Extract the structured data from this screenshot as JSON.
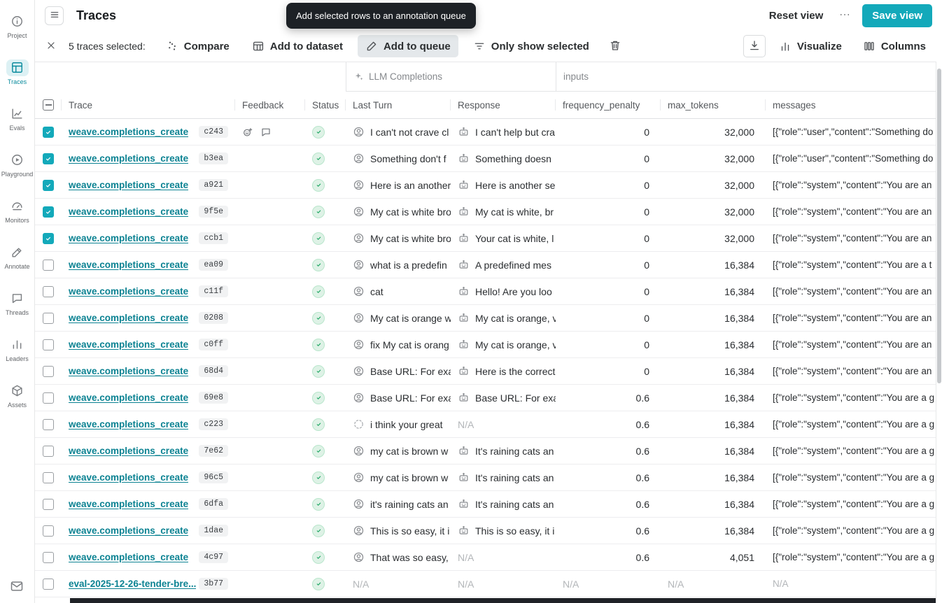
{
  "colors": {
    "accent": "#13a9ba",
    "link": "#0b8292",
    "success_green": "#17a35d",
    "tooltip_bg": "#1d2126",
    "active_button_bg": "#e4e8eb"
  },
  "sidebar": {
    "items": [
      {
        "label": "Project",
        "icon": "info",
        "active": false
      },
      {
        "label": "Traces",
        "icon": "traces",
        "active": true
      },
      {
        "label": "Evals",
        "icon": "evals",
        "active": false
      },
      {
        "label": "Playground",
        "icon": "playground",
        "active": false
      },
      {
        "label": "Monitors",
        "icon": "monitors",
        "active": false
      },
      {
        "label": "Annotate",
        "icon": "annotate",
        "active": false
      },
      {
        "label": "Threads",
        "icon": "threads",
        "active": false
      },
      {
        "label": "Leaders",
        "icon": "leaders",
        "active": false
      },
      {
        "label": "Assets",
        "icon": "assets",
        "active": false
      }
    ],
    "bottom_icon": "mail"
  },
  "header": {
    "title": "Traces",
    "reset_view_label": "Reset view",
    "save_view_label": "Save view"
  },
  "tooltip": {
    "text": "Add selected rows to an annotation queue"
  },
  "toolbar": {
    "selected_text": "5 traces selected:",
    "buttons": [
      {
        "label": "Compare",
        "icon": "scatter",
        "active": false
      },
      {
        "label": "Add to dataset",
        "icon": "dataset",
        "active": false
      },
      {
        "label": "Add to queue",
        "icon": "pencil",
        "active": true
      },
      {
        "label": "Only show selected",
        "icon": "filter",
        "active": false
      }
    ],
    "trash_icon": "trash",
    "right_buttons": [
      {
        "label": "",
        "icon": "download",
        "boxed": true
      },
      {
        "label": "Visualize",
        "icon": "barchart",
        "boxed": false
      },
      {
        "label": "Columns",
        "icon": "columns",
        "boxed": false
      }
    ]
  },
  "table": {
    "group_headers": [
      {
        "label": "LLM Completions",
        "icon": "sparkle"
      },
      {
        "label": "inputs",
        "icon": ""
      }
    ],
    "columns": [
      "Trace",
      "Feedback",
      "Status",
      "Last Turn",
      "Response",
      "frequency_penalty",
      "max_tokens",
      "messages"
    ],
    "header_checkbox_state": "indeterminate",
    "na_text": "N/A",
    "rows": [
      {
        "name": "weave.completions_create",
        "id": "c243",
        "checked": true,
        "feedback": true,
        "status": "success",
        "last_icon": "person",
        "last_turn": "I can't not crave cl",
        "response_icon": "robot",
        "response": "I can't help but cra",
        "frequency_penalty": "0",
        "max_tokens": "32,000",
        "messages": "[{\"role\":\"user\",\"content\":\"Something do"
      },
      {
        "name": "weave.completions_create",
        "id": "b3ea",
        "checked": true,
        "feedback": false,
        "status": "success",
        "last_icon": "person",
        "last_turn": "Something don't f",
        "response_icon": "robot",
        "response": "Something doesn",
        "frequency_penalty": "0",
        "max_tokens": "32,000",
        "messages": "[{\"role\":\"user\",\"content\":\"Something do"
      },
      {
        "name": "weave.completions_create",
        "id": "a921",
        "checked": true,
        "feedback": false,
        "status": "success",
        "last_icon": "person",
        "last_turn": "Here is an another",
        "response_icon": "robot",
        "response": "Here is another se",
        "frequency_penalty": "0",
        "max_tokens": "32,000",
        "messages": "[{\"role\":\"system\",\"content\":\"You are an"
      },
      {
        "name": "weave.completions_create",
        "id": "9f5e",
        "checked": true,
        "feedback": false,
        "status": "success",
        "last_icon": "person",
        "last_turn": "My cat is white bro",
        "response_icon": "robot",
        "response": "My cat is white, br",
        "frequency_penalty": "0",
        "max_tokens": "32,000",
        "messages": "[{\"role\":\"system\",\"content\":\"You are an"
      },
      {
        "name": "weave.completions_create",
        "id": "ccb1",
        "checked": true,
        "feedback": false,
        "status": "success",
        "last_icon": "person",
        "last_turn": "My cat is white bro",
        "response_icon": "robot",
        "response": "Your cat is white, l",
        "frequency_penalty": "0",
        "max_tokens": "32,000",
        "messages": "[{\"role\":\"system\",\"content\":\"You are an"
      },
      {
        "name": "weave.completions_create",
        "id": "ea09",
        "checked": false,
        "feedback": false,
        "status": "success",
        "last_icon": "person",
        "last_turn": "what is a predefin",
        "response_icon": "robot",
        "response": "A predefined mes",
        "frequency_penalty": "0",
        "max_tokens": "16,384",
        "messages": "[{\"role\":\"system\",\"content\":\"You are a t"
      },
      {
        "name": "weave.completions_create",
        "id": "c11f",
        "checked": false,
        "feedback": false,
        "status": "success",
        "last_icon": "person",
        "last_turn": "cat",
        "response_icon": "robot",
        "response": "Hello! Are you loo",
        "frequency_penalty": "0",
        "max_tokens": "16,384",
        "messages": "[{\"role\":\"system\",\"content\":\"You are an"
      },
      {
        "name": "weave.completions_create",
        "id": "0208",
        "checked": false,
        "feedback": false,
        "status": "success",
        "last_icon": "person",
        "last_turn": "My cat is orange w",
        "response_icon": "robot",
        "response": "My cat is orange, v",
        "frequency_penalty": "0",
        "max_tokens": "16,384",
        "messages": "[{\"role\":\"system\",\"content\":\"You are an"
      },
      {
        "name": "weave.completions_create",
        "id": "c0ff",
        "checked": false,
        "feedback": false,
        "status": "success",
        "last_icon": "person",
        "last_turn": "fix My cat is orang",
        "response_icon": "robot",
        "response": "My cat is orange, v",
        "frequency_penalty": "0",
        "max_tokens": "16,384",
        "messages": "[{\"role\":\"system\",\"content\":\"You are an"
      },
      {
        "name": "weave.completions_create",
        "id": "68d4",
        "checked": false,
        "feedback": false,
        "status": "success",
        "last_icon": "person",
        "last_turn": "Base URL: For exa",
        "response_icon": "robot",
        "response": "Here is the correct",
        "frequency_penalty": "0",
        "max_tokens": "16,384",
        "messages": "[{\"role\":\"system\",\"content\":\"You are an"
      },
      {
        "name": "weave.completions_create",
        "id": "69e8",
        "checked": false,
        "feedback": false,
        "status": "success",
        "last_icon": "person",
        "last_turn": "Base URL: For exa",
        "response_icon": "robot",
        "response": "Base URL: For exa",
        "frequency_penalty": "0.6",
        "max_tokens": "16,384",
        "messages": "[{\"role\":\"system\",\"content\":\"You are a g"
      },
      {
        "name": "weave.completions_create",
        "id": "c223",
        "checked": false,
        "feedback": false,
        "status": "success",
        "last_icon": "spinner",
        "last_turn": "i think your great",
        "response_icon": "",
        "response": "N/A",
        "frequency_penalty": "0.6",
        "max_tokens": "16,384",
        "messages": "[{\"role\":\"system\",\"content\":\"You are a g"
      },
      {
        "name": "weave.completions_create",
        "id": "7e62",
        "checked": false,
        "feedback": false,
        "status": "success",
        "last_icon": "person",
        "last_turn": "my cat is brown w",
        "response_icon": "robot",
        "response": "It's raining cats an",
        "frequency_penalty": "0.6",
        "max_tokens": "16,384",
        "messages": "[{\"role\":\"system\",\"content\":\"You are a g"
      },
      {
        "name": "weave.completions_create",
        "id": "96c5",
        "checked": false,
        "feedback": false,
        "status": "success",
        "last_icon": "person",
        "last_turn": "my cat is brown w",
        "response_icon": "robot",
        "response": "It's raining cats an",
        "frequency_penalty": "0.6",
        "max_tokens": "16,384",
        "messages": "[{\"role\":\"system\",\"content\":\"You are a g"
      },
      {
        "name": "weave.completions_create",
        "id": "6dfa",
        "checked": false,
        "feedback": false,
        "status": "success",
        "last_icon": "person",
        "last_turn": "it's raining cats an",
        "response_icon": "robot",
        "response": "It's raining cats an",
        "frequency_penalty": "0.6",
        "max_tokens": "16,384",
        "messages": "[{\"role\":\"system\",\"content\":\"You are a g"
      },
      {
        "name": "weave.completions_create",
        "id": "1dae",
        "checked": false,
        "feedback": false,
        "status": "success",
        "last_icon": "person",
        "last_turn": "This is so easy, it i",
        "response_icon": "robot",
        "response": "This is so easy, it i",
        "frequency_penalty": "0.6",
        "max_tokens": "16,384",
        "messages": "[{\"role\":\"system\",\"content\":\"You are a g"
      },
      {
        "name": "weave.completions_create",
        "id": "4c97",
        "checked": false,
        "feedback": false,
        "status": "success",
        "last_icon": "person",
        "last_turn": "That was so easy,",
        "response_icon": "",
        "response": "N/A",
        "frequency_penalty": "0.6",
        "max_tokens": "4,051",
        "messages": "[{\"role\":\"system\",\"content\":\"You are a g"
      },
      {
        "name": "eval-2025-12-26-tender-bre...",
        "id": "3b77",
        "checked": false,
        "feedback": false,
        "status": "success",
        "last_icon": "",
        "last_turn": "N/A",
        "response_icon": "",
        "response": "N/A",
        "frequency_penalty": "N/A",
        "max_tokens": "N/A",
        "messages": "N/A"
      }
    ]
  }
}
